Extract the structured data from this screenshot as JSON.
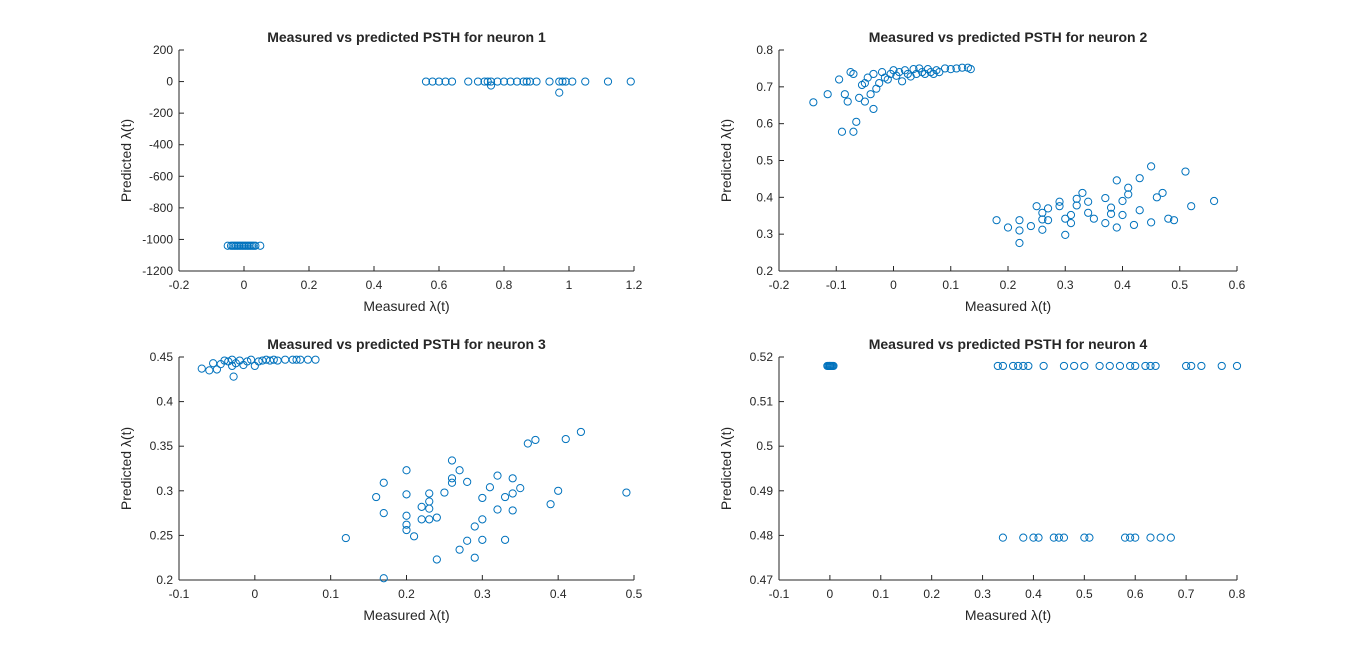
{
  "figure": {
    "background": "#ffffff",
    "marker_color": "#0072BD"
  },
  "chart_data": [
    {
      "type": "scatter",
      "title": "Measured vs predicted PSTH for neuron 1",
      "xlabel": "Measured λ(t)",
      "ylabel": "Predicted λ(t)",
      "xlim": [
        -0.2,
        1.2
      ],
      "ylim": [
        -1200,
        200
      ],
      "xticks": [
        -0.2,
        0,
        0.2,
        0.4,
        0.6,
        0.8,
        1,
        1.2
      ],
      "yticks": [
        -1200,
        -1000,
        -800,
        -600,
        -400,
        -200,
        0,
        200
      ],
      "xtick_labels": [
        "-0.2",
        "0",
        "0.2",
        "0.4",
        "0.6",
        "0.8",
        "1",
        "1.2"
      ],
      "ytick_labels": [
        "-1200",
        "-1000",
        "-800",
        "-600",
        "-400",
        "-200",
        "0",
        "200"
      ],
      "points": [
        [
          -0.05,
          -1040
        ],
        [
          -0.04,
          -1040
        ],
        [
          -0.035,
          -1040
        ],
        [
          -0.03,
          -1040
        ],
        [
          -0.025,
          -1040
        ],
        [
          -0.02,
          -1040
        ],
        [
          -0.015,
          -1040
        ],
        [
          -0.01,
          -1040
        ],
        [
          -0.005,
          -1040
        ],
        [
          0,
          -1040
        ],
        [
          0.005,
          -1040
        ],
        [
          0.01,
          -1040
        ],
        [
          0.015,
          -1040
        ],
        [
          0.02,
          -1040
        ],
        [
          0.025,
          -1040
        ],
        [
          0.03,
          -1040
        ],
        [
          0.035,
          -1040
        ],
        [
          0.05,
          -1040
        ],
        [
          0.56,
          0
        ],
        [
          0.58,
          0
        ],
        [
          0.6,
          0
        ],
        [
          0.62,
          0
        ],
        [
          0.64,
          0
        ],
        [
          0.69,
          0
        ],
        [
          0.72,
          0
        ],
        [
          0.74,
          0
        ],
        [
          0.75,
          0
        ],
        [
          0.76,
          0
        ],
        [
          0.78,
          0
        ],
        [
          0.8,
          0
        ],
        [
          0.82,
          0
        ],
        [
          0.84,
          0
        ],
        [
          0.86,
          0
        ],
        [
          0.87,
          0
        ],
        [
          0.88,
          0
        ],
        [
          0.9,
          0
        ],
        [
          0.94,
          0
        ],
        [
          0.97,
          0
        ],
        [
          0.98,
          0
        ],
        [
          0.99,
          0
        ],
        [
          1.01,
          0
        ],
        [
          1.05,
          0
        ],
        [
          1.12,
          0
        ],
        [
          1.19,
          0
        ],
        [
          0.76,
          -25
        ],
        [
          0.97,
          -70
        ]
      ]
    },
    {
      "type": "scatter",
      "title": "Measured vs predicted PSTH for neuron 2",
      "xlabel": "Measured λ(t)",
      "ylabel": "Predicted λ(t)",
      "xlim": [
        -0.2,
        0.6
      ],
      "ylim": [
        0.2,
        0.8
      ],
      "xticks": [
        -0.2,
        -0.1,
        0,
        0.1,
        0.2,
        0.3,
        0.4,
        0.5,
        0.6
      ],
      "yticks": [
        0.2,
        0.3,
        0.4,
        0.5,
        0.6,
        0.7,
        0.8
      ],
      "xtick_labels": [
        "-0.2",
        "-0.1",
        "0",
        "0.1",
        "0.2",
        "0.3",
        "0.4",
        "0.5",
        "0.6"
      ],
      "ytick_labels": [
        "0.2",
        "0.3",
        "0.4",
        "0.5",
        "0.6",
        "0.7",
        "0.8"
      ],
      "points": [
        [
          -0.14,
          0.658
        ],
        [
          -0.115,
          0.68
        ],
        [
          -0.095,
          0.72
        ],
        [
          -0.09,
          0.578
        ],
        [
          -0.085,
          0.68
        ],
        [
          -0.08,
          0.66
        ],
        [
          -0.075,
          0.74
        ],
        [
          -0.07,
          0.578
        ],
        [
          -0.07,
          0.735
        ],
        [
          -0.065,
          0.605
        ],
        [
          -0.06,
          0.67
        ],
        [
          -0.055,
          0.705
        ],
        [
          -0.05,
          0.66
        ],
        [
          -0.05,
          0.71
        ],
        [
          -0.045,
          0.725
        ],
        [
          -0.04,
          0.68
        ],
        [
          -0.035,
          0.64
        ],
        [
          -0.035,
          0.735
        ],
        [
          -0.03,
          0.695
        ],
        [
          -0.025,
          0.71
        ],
        [
          -0.02,
          0.74
        ],
        [
          -0.015,
          0.725
        ],
        [
          -0.01,
          0.72
        ],
        [
          -0.005,
          0.735
        ],
        [
          0,
          0.745
        ],
        [
          0.005,
          0.73
        ],
        [
          0.01,
          0.74
        ],
        [
          0.015,
          0.715
        ],
        [
          0.02,
          0.745
        ],
        [
          0.025,
          0.735
        ],
        [
          0.03,
          0.728
        ],
        [
          0.035,
          0.748
        ],
        [
          0.04,
          0.735
        ],
        [
          0.045,
          0.75
        ],
        [
          0.05,
          0.74
        ],
        [
          0.055,
          0.735
        ],
        [
          0.06,
          0.748
        ],
        [
          0.065,
          0.74
        ],
        [
          0.07,
          0.735
        ],
        [
          0.075,
          0.745
        ],
        [
          0.08,
          0.74
        ],
        [
          0.09,
          0.75
        ],
        [
          0.1,
          0.748
        ],
        [
          0.11,
          0.75
        ],
        [
          0.12,
          0.752
        ],
        [
          0.13,
          0.752
        ],
        [
          0.135,
          0.748
        ],
        [
          0.18,
          0.338
        ],
        [
          0.2,
          0.318
        ],
        [
          0.22,
          0.276
        ],
        [
          0.22,
          0.31
        ],
        [
          0.22,
          0.338
        ],
        [
          0.24,
          0.322
        ],
        [
          0.25,
          0.376
        ],
        [
          0.26,
          0.358
        ],
        [
          0.26,
          0.34
        ],
        [
          0.26,
          0.312
        ],
        [
          0.27,
          0.37
        ],
        [
          0.27,
          0.338
        ],
        [
          0.29,
          0.376
        ],
        [
          0.29,
          0.388
        ],
        [
          0.3,
          0.298
        ],
        [
          0.3,
          0.342
        ],
        [
          0.31,
          0.352
        ],
        [
          0.31,
          0.33
        ],
        [
          0.32,
          0.396
        ],
        [
          0.32,
          0.378
        ],
        [
          0.33,
          0.412
        ],
        [
          0.34,
          0.358
        ],
        [
          0.34,
          0.388
        ],
        [
          0.35,
          0.342
        ],
        [
          0.37,
          0.398
        ],
        [
          0.37,
          0.33
        ],
        [
          0.38,
          0.372
        ],
        [
          0.38,
          0.355
        ],
        [
          0.39,
          0.318
        ],
        [
          0.39,
          0.446
        ],
        [
          0.4,
          0.39
        ],
        [
          0.4,
          0.352
        ],
        [
          0.41,
          0.408
        ],
        [
          0.41,
          0.426
        ],
        [
          0.42,
          0.325
        ],
        [
          0.43,
          0.365
        ],
        [
          0.43,
          0.452
        ],
        [
          0.45,
          0.484
        ],
        [
          0.45,
          0.332
        ],
        [
          0.46,
          0.4
        ],
        [
          0.47,
          0.412
        ],
        [
          0.48,
          0.342
        ],
        [
          0.49,
          0.338
        ],
        [
          0.51,
          0.47
        ],
        [
          0.52,
          0.376
        ],
        [
          0.56,
          0.39
        ]
      ]
    },
    {
      "type": "scatter",
      "title": "Measured vs predicted PSTH for neuron 3",
      "xlabel": "Measured λ(t)",
      "ylabel": "Predicted λ(t)",
      "xlim": [
        -0.1,
        0.5
      ],
      "ylim": [
        0.2,
        0.45
      ],
      "xticks": [
        -0.1,
        0,
        0.1,
        0.2,
        0.3,
        0.4,
        0.5
      ],
      "yticks": [
        0.2,
        0.25,
        0.3,
        0.35,
        0.4,
        0.45
      ],
      "xtick_labels": [
        "-0.1",
        "0",
        "0.1",
        "0.2",
        "0.3",
        "0.4",
        "0.5"
      ],
      "ytick_labels": [
        "0.2",
        "0.25",
        "0.3",
        "0.35",
        "0.4",
        "0.45"
      ],
      "points": [
        [
          -0.07,
          0.437
        ],
        [
          -0.06,
          0.435
        ],
        [
          -0.055,
          0.443
        ],
        [
          -0.05,
          0.436
        ],
        [
          -0.045,
          0.442
        ],
        [
          -0.04,
          0.446
        ],
        [
          -0.035,
          0.445
        ],
        [
          -0.03,
          0.447
        ],
        [
          -0.03,
          0.44
        ],
        [
          -0.028,
          0.428
        ],
        [
          -0.025,
          0.443
        ],
        [
          -0.02,
          0.446
        ],
        [
          -0.015,
          0.441
        ],
        [
          -0.01,
          0.445
        ],
        [
          -0.005,
          0.447
        ],
        [
          0,
          0.44
        ],
        [
          0.005,
          0.445
        ],
        [
          0.01,
          0.446
        ],
        [
          0.015,
          0.447
        ],
        [
          0.02,
          0.446
        ],
        [
          0.025,
          0.447
        ],
        [
          0.03,
          0.446
        ],
        [
          0.04,
          0.447
        ],
        [
          0.05,
          0.447
        ],
        [
          0.055,
          0.447
        ],
        [
          0.06,
          0.447
        ],
        [
          0.07,
          0.447
        ],
        [
          0.08,
          0.447
        ],
        [
          0.12,
          0.247
        ],
        [
          0.16,
          0.293
        ],
        [
          0.17,
          0.309
        ],
        [
          0.17,
          0.275
        ],
        [
          0.17,
          0.202
        ],
        [
          0.2,
          0.323
        ],
        [
          0.2,
          0.296
        ],
        [
          0.2,
          0.272
        ],
        [
          0.2,
          0.262
        ],
        [
          0.2,
          0.256
        ],
        [
          0.21,
          0.249
        ],
        [
          0.22,
          0.282
        ],
        [
          0.22,
          0.268
        ],
        [
          0.23,
          0.297
        ],
        [
          0.23,
          0.288
        ],
        [
          0.23,
          0.28
        ],
        [
          0.23,
          0.268
        ],
        [
          0.24,
          0.27
        ],
        [
          0.24,
          0.223
        ],
        [
          0.25,
          0.298
        ],
        [
          0.26,
          0.334
        ],
        [
          0.26,
          0.314
        ],
        [
          0.26,
          0.309
        ],
        [
          0.27,
          0.323
        ],
        [
          0.27,
          0.234
        ],
        [
          0.28,
          0.31
        ],
        [
          0.28,
          0.244
        ],
        [
          0.29,
          0.26
        ],
        [
          0.29,
          0.225
        ],
        [
          0.3,
          0.292
        ],
        [
          0.3,
          0.268
        ],
        [
          0.3,
          0.245
        ],
        [
          0.31,
          0.304
        ],
        [
          0.32,
          0.317
        ],
        [
          0.32,
          0.279
        ],
        [
          0.33,
          0.293
        ],
        [
          0.33,
          0.245
        ],
        [
          0.34,
          0.314
        ],
        [
          0.34,
          0.297
        ],
        [
          0.34,
          0.278
        ],
        [
          0.35,
          0.303
        ],
        [
          0.36,
          0.353
        ],
        [
          0.37,
          0.357
        ],
        [
          0.39,
          0.285
        ],
        [
          0.4,
          0.3
        ],
        [
          0.41,
          0.358
        ],
        [
          0.43,
          0.366
        ],
        [
          0.49,
          0.298
        ]
      ]
    },
    {
      "type": "scatter",
      "title": "Measured vs predicted PSTH for neuron 4",
      "xlabel": "Measured λ(t)",
      "ylabel": "Predicted λ(t)",
      "xlim": [
        -0.1,
        0.8
      ],
      "ylim": [
        0.47,
        0.52
      ],
      "xticks": [
        -0.1,
        0,
        0.1,
        0.2,
        0.3,
        0.4,
        0.5,
        0.6,
        0.7,
        0.8
      ],
      "yticks": [
        0.47,
        0.48,
        0.49,
        0.5,
        0.51,
        0.52
      ],
      "xtick_labels": [
        "-0.1",
        "0",
        "0.1",
        "0.2",
        "0.3",
        "0.4",
        "0.5",
        "0.6",
        "0.7",
        "0.8"
      ],
      "ytick_labels": [
        "0.47",
        "0.48",
        "0.49",
        "0.5",
        "0.51",
        "0.52"
      ],
      "points": [
        [
          -0.005,
          0.518
        ],
        [
          -0.003,
          0.518
        ],
        [
          -0.001,
          0.518
        ],
        [
          0,
          0.518
        ],
        [
          0.001,
          0.518
        ],
        [
          0.003,
          0.518
        ],
        [
          0.005,
          0.518
        ],
        [
          0.007,
          0.518
        ],
        [
          0.33,
          0.518
        ],
        [
          0.34,
          0.518
        ],
        [
          0.36,
          0.518
        ],
        [
          0.37,
          0.518
        ],
        [
          0.38,
          0.518
        ],
        [
          0.39,
          0.518
        ],
        [
          0.42,
          0.518
        ],
        [
          0.46,
          0.518
        ],
        [
          0.48,
          0.518
        ],
        [
          0.5,
          0.518
        ],
        [
          0.53,
          0.518
        ],
        [
          0.55,
          0.518
        ],
        [
          0.57,
          0.518
        ],
        [
          0.59,
          0.518
        ],
        [
          0.6,
          0.518
        ],
        [
          0.62,
          0.518
        ],
        [
          0.63,
          0.518
        ],
        [
          0.64,
          0.518
        ],
        [
          0.7,
          0.518
        ],
        [
          0.71,
          0.518
        ],
        [
          0.73,
          0.518
        ],
        [
          0.77,
          0.518
        ],
        [
          0.8,
          0.518
        ],
        [
          0.34,
          0.4795
        ],
        [
          0.38,
          0.4795
        ],
        [
          0.4,
          0.4795
        ],
        [
          0.41,
          0.4795
        ],
        [
          0.44,
          0.4795
        ],
        [
          0.45,
          0.4795
        ],
        [
          0.46,
          0.4795
        ],
        [
          0.5,
          0.4795
        ],
        [
          0.51,
          0.4795
        ],
        [
          0.58,
          0.4795
        ],
        [
          0.59,
          0.4795
        ],
        [
          0.6,
          0.4795
        ],
        [
          0.63,
          0.4795
        ],
        [
          0.65,
          0.4795
        ],
        [
          0.67,
          0.4795
        ]
      ]
    }
  ]
}
